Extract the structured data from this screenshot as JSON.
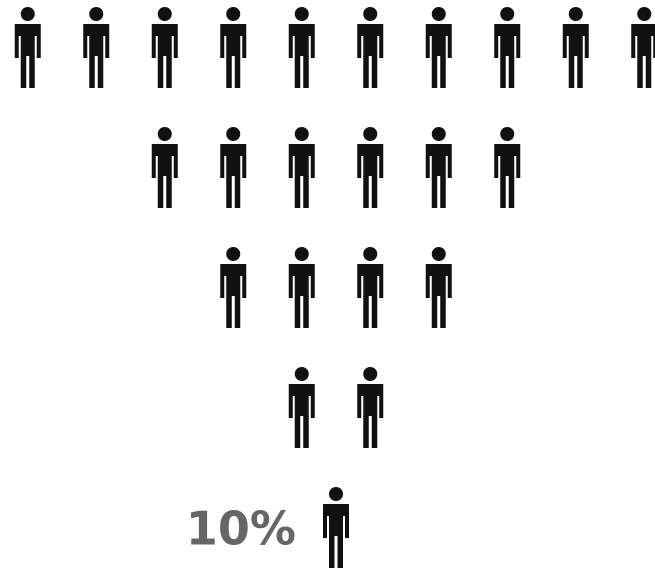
{
  "chart_data": {
    "type": "pictogram",
    "values": [
      100,
      60,
      40,
      20,
      10
    ],
    "value_labels": [
      null,
      null,
      null,
      null,
      "10%"
    ],
    "icon_value": 10,
    "color": "#111111"
  }
}
